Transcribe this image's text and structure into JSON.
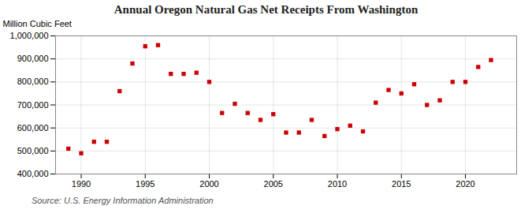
{
  "chart_data": {
    "type": "scatter",
    "title": "Annual Oregon Natural Gas Net Receipts From Washington",
    "ylabel": "Million Cubic Feet",
    "annotation": "Source: U.S. Energy Information Administration",
    "color": "#cc0000",
    "marker": "square",
    "grid": true,
    "x": [
      1989,
      1990,
      1991,
      1992,
      1993,
      1994,
      1995,
      1996,
      1997,
      1998,
      1999,
      2000,
      2001,
      2002,
      2003,
      2004,
      2005,
      2006,
      2007,
      2008,
      2009,
      2010,
      2011,
      2012,
      2013,
      2014,
      2015,
      2016,
      2017,
      2018,
      2019,
      2020,
      2021,
      2022
    ],
    "values": [
      510000,
      490000,
      540000,
      540000,
      760000,
      880000,
      955000,
      960000,
      835000,
      835000,
      840000,
      800000,
      665000,
      705000,
      665000,
      635000,
      660000,
      580000,
      580000,
      635000,
      565000,
      595000,
      610000,
      585000,
      710000,
      765000,
      750000,
      790000,
      700000,
      720000,
      800000,
      800000,
      865000,
      895000
    ],
    "xlim": [
      1988,
      2024
    ],
    "xticks": [
      1990,
      1995,
      2000,
      2005,
      2010,
      2015,
      2020
    ],
    "ylim": [
      400000,
      1000000
    ],
    "yticks": [
      {
        "value": 400000,
        "label": "400,000"
      },
      {
        "value": 500000,
        "label": "500,000"
      },
      {
        "value": 600000,
        "label": "600,000"
      },
      {
        "value": 700000,
        "label": "700,000"
      },
      {
        "value": 800000,
        "label": "800,000"
      },
      {
        "value": 900000,
        "label": "900,000"
      },
      {
        "value": 1000000,
        "label": "1,000,000"
      }
    ]
  }
}
